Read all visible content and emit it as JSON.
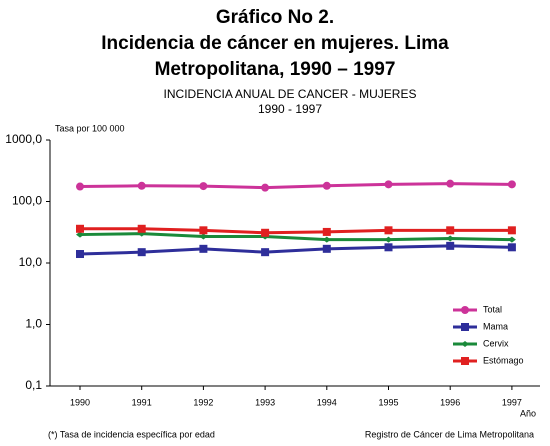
{
  "chart_data": {
    "type": "line",
    "title": [
      "Gráfico No 2.",
      "Incidencia de cáncer en mujeres. Lima",
      "Metropolitana, 1990 – 1997"
    ],
    "subtitle": [
      "INCIDENCIA ANUAL DE CANCER - MUJERES",
      "1990 - 1997"
    ],
    "y_label": "Tasa por 100 000",
    "x_label": "Año",
    "categories": [
      "1990",
      "1991",
      "1992",
      "1993",
      "1994",
      "1995",
      "1996",
      "1997"
    ],
    "series": [
      {
        "name": "Total",
        "color": "#cc3399",
        "marker": "circle",
        "values": [
          175,
          180,
          178,
          168,
          180,
          190,
          195,
          190
        ]
      },
      {
        "name": "Mama",
        "color": "#2e2e9a",
        "marker": "square",
        "values": [
          14,
          15,
          17,
          15,
          17,
          18,
          19,
          18
        ]
      },
      {
        "name": "Cervix",
        "color": "#1a8a3a",
        "marker": "diamond",
        "values": [
          29,
          30,
          27,
          27,
          24,
          24,
          25,
          24
        ]
      },
      {
        "name": "Estómago",
        "color": "#e02020",
        "marker": "square",
        "values": [
          36,
          36,
          34,
          31,
          32,
          34,
          34,
          34
        ]
      }
    ],
    "log_scale": true,
    "ylim": [
      0.1,
      1000
    ],
    "yticks": [
      {
        "value": 0.1,
        "label": "0,1"
      },
      {
        "value": 1,
        "label": "1,0"
      },
      {
        "value": 10,
        "label": "10,0"
      },
      {
        "value": 100,
        "label": "100,0"
      },
      {
        "value": 1000,
        "label": "1000,0"
      }
    ],
    "legend": "right",
    "footnote": "(*) Tasa de incidencia específica por edad",
    "source": "Registro de Cáncer de Lima Metropolitana"
  }
}
